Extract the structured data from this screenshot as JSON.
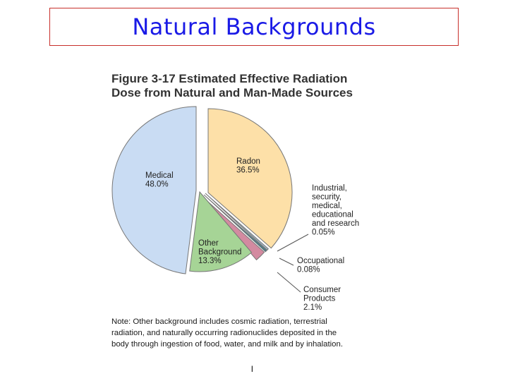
{
  "slide": {
    "title": "Natural Backgrounds",
    "page_number": "l"
  },
  "figure": {
    "title_line1": "Figure 3-17  Estimated Effective Radiation",
    "title_line2": "Dose from Natural and Man-Made Sources",
    "note_lines": [
      "Note:  Other background includes cosmic radiation, terrestrial",
      "radiation, and naturally occurring radionuclides deposited in the",
      "body through ingestion of food, water, and milk and by inhalation."
    ]
  },
  "chart_data": {
    "type": "pie",
    "title": "Figure 3-17 Estimated Effective Radiation Dose from Natural and Man-Made Sources",
    "slices": [
      {
        "id": "radon",
        "label_lines": [
          "Radon",
          "36.5%"
        ],
        "value": 36.5,
        "color": "#fde0a8",
        "exploded": true
      },
      {
        "id": "industrial",
        "label_lines": [
          "Industrial,",
          "security,",
          "medical,",
          "educational",
          "and research",
          "0.05%"
        ],
        "value": 0.05,
        "color": "#9fb8c8",
        "exploded": true
      },
      {
        "id": "occupational",
        "label_lines": [
          "Occupational",
          "0.08%"
        ],
        "value": 0.08,
        "color": "#3d7f8c",
        "exploded": true
      },
      {
        "id": "consumer",
        "label_lines": [
          "Consumer",
          "Products",
          "2.1%"
        ],
        "value": 2.1,
        "color": "#d38aa0",
        "exploded": true
      },
      {
        "id": "other-background",
        "label_lines": [
          "Other",
          "Background",
          "13.3%"
        ],
        "value": 13.3,
        "color": "#a6d496",
        "exploded": true
      },
      {
        "id": "medical",
        "label_lines": [
          "Medical",
          "48.0%"
        ],
        "value": 48.0,
        "color": "#c9dcf3",
        "exploded": true
      }
    ],
    "outline_color": "#777777"
  }
}
